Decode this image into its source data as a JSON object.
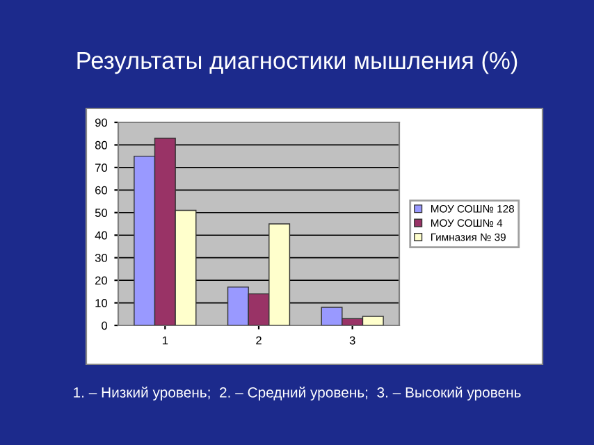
{
  "chart_data": {
    "type": "bar",
    "title": "Результаты диагностики мышления (%)",
    "categories": [
      "1",
      "2",
      "3"
    ],
    "series": [
      {
        "name": "МОУ СОШ№ 128",
        "color": "#9999ff",
        "values": [
          75,
          17,
          8
        ]
      },
      {
        "name": "МОУ СОШ№ 4",
        "color": "#993366",
        "values": [
          83,
          14,
          3
        ]
      },
      {
        "name": "Гимназия № 39",
        "color": "#ffffcc",
        "values": [
          51,
          45,
          4
        ]
      }
    ],
    "ylim": [
      0,
      90
    ],
    "yticks": [
      0,
      10,
      20,
      30,
      40,
      50,
      60,
      70,
      80,
      90
    ],
    "grid": "y",
    "legend": "right",
    "annotations": [
      "1. – Низкий уровень;  2. – Средний уровень;  3. – Высокий уровень"
    ]
  }
}
